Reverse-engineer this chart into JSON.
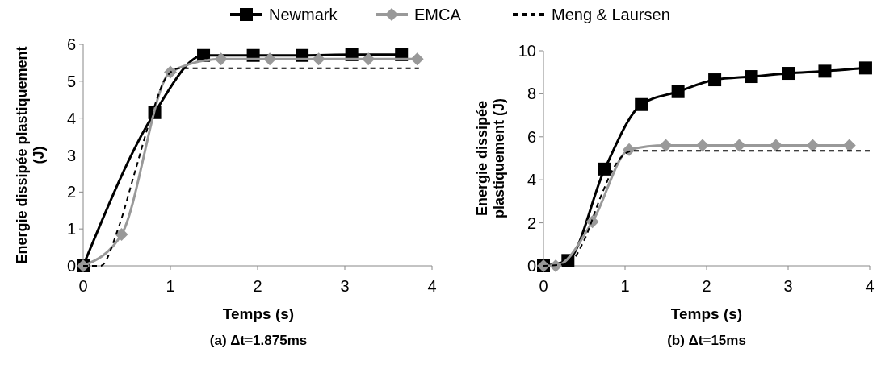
{
  "chart_data": [
    {
      "type": "line",
      "title": "(a) Δt=1.875ms",
      "xlabel": "Temps (s)",
      "ylabel": "Energie dissipée plastiquement (J)",
      "xlim": [
        0,
        4
      ],
      "xticks": [
        0,
        1,
        2,
        3,
        4
      ],
      "ylim": [
        0,
        6
      ],
      "yticks": [
        0,
        1,
        2,
        3,
        4,
        5,
        6
      ],
      "legend": "top",
      "grid": false,
      "series": [
        {
          "name": "Newmark",
          "color": "#000000",
          "marker": "square",
          "line_style": "solid",
          "x": [
            0,
            0.82,
            1.38,
            1.95,
            2.51,
            3.08,
            3.65
          ],
          "values": [
            0,
            4.15,
            5.7,
            5.7,
            5.7,
            5.72,
            5.72
          ]
        },
        {
          "name": "EMCA",
          "color": "#999999",
          "marker": "diamond",
          "line_style": "solid",
          "x": [
            0,
            0.44,
            1.0,
            1.58,
            2.14,
            2.7,
            3.27,
            3.83
          ],
          "values": [
            0,
            0.85,
            5.25,
            5.6,
            5.6,
            5.6,
            5.6,
            5.6
          ]
        },
        {
          "name": "Meng & Laursen",
          "color": "#000000",
          "marker": "none",
          "line_style": "dashed",
          "x": [
            0,
            0.2,
            0.4,
            0.6,
            0.8,
            0.95,
            1.1,
            3.85
          ],
          "values": [
            0,
            0,
            1,
            2.6,
            4.2,
            5.1,
            5.35,
            5.35
          ]
        }
      ]
    },
    {
      "type": "line",
      "title": "(b) Δt=15ms",
      "xlabel": "Temps (s)",
      "ylabel": "Energie dissipée plastiquement (J)",
      "xlim": [
        0,
        4
      ],
      "xticks": [
        0,
        1,
        2,
        3,
        4
      ],
      "ylim": [
        0,
        10
      ],
      "yticks": [
        0,
        2,
        4,
        6,
        8,
        10
      ],
      "legend": false,
      "grid": false,
      "series": [
        {
          "color": "#000000",
          "marker": "square",
          "line_style": "solid",
          "x": [
            0,
            0.3,
            0.75,
            1.2,
            1.65,
            2.1,
            2.55,
            3.0,
            3.45,
            3.95
          ],
          "values": [
            0,
            0.25,
            4.5,
            7.5,
            8.1,
            8.65,
            8.8,
            8.95,
            9.05,
            9.2
          ]
        },
        {
          "color": "#999999",
          "marker": "diamond",
          "line_style": "solid",
          "x": [
            0,
            0.15,
            0.6,
            1.05,
            1.5,
            1.95,
            2.4,
            2.85,
            3.3,
            3.75
          ],
          "values": [
            0,
            0,
            2.05,
            5.4,
            5.6,
            5.6,
            5.6,
            5.6,
            5.6,
            5.6
          ]
        },
        {
          "color": "#000000",
          "marker": "none",
          "line_style": "dashed",
          "x": [
            0,
            0.3,
            0.5,
            0.7,
            0.9,
            1.1,
            4
          ],
          "values": [
            0,
            0.1,
            1.2,
            3.2,
            4.8,
            5.35,
            5.35
          ]
        }
      ]
    }
  ]
}
